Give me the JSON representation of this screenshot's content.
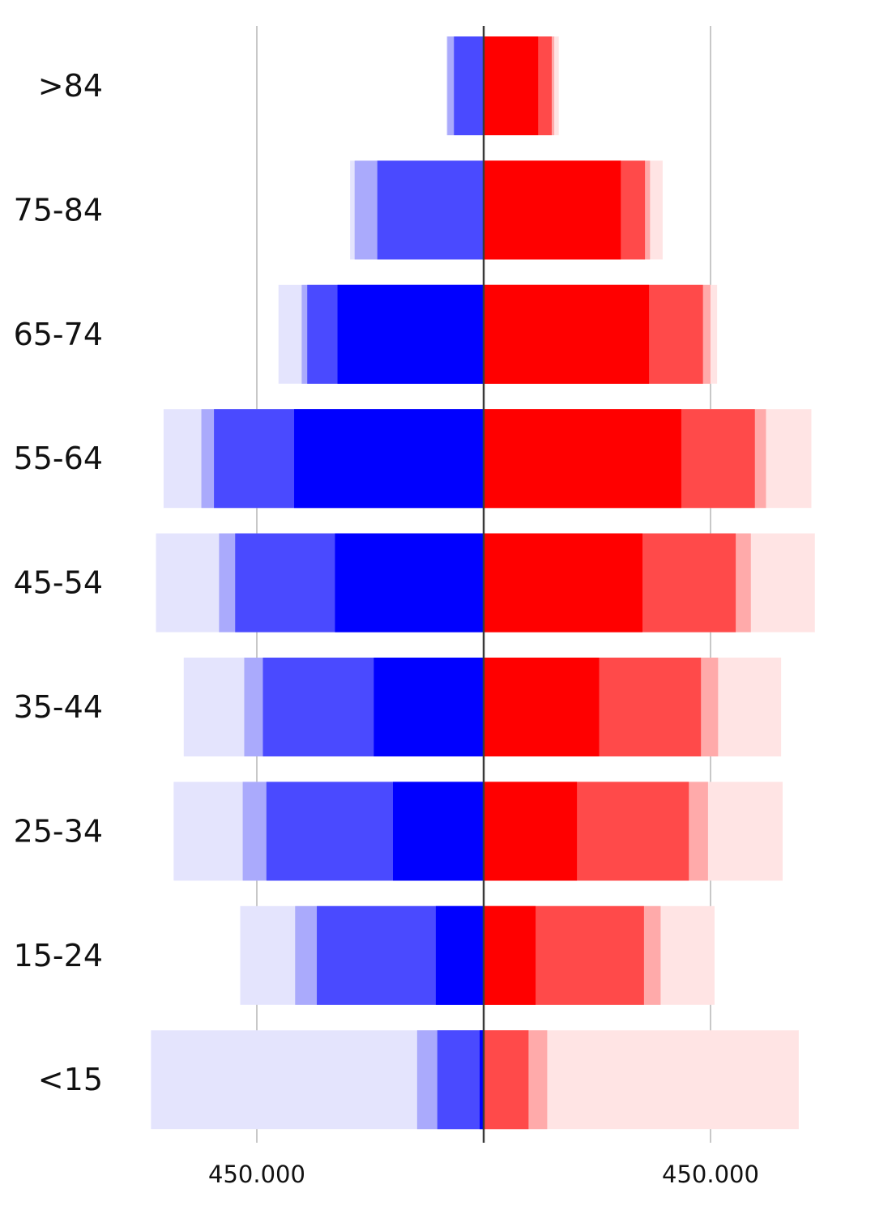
{
  "chart_data": {
    "type": "bar",
    "orientation": "horizontal-diverging",
    "title": "",
    "xlabel": "",
    "ylabel": "",
    "categories": [
      ">84",
      "75-84",
      "65-74",
      "55-64",
      "45-54",
      "35-44",
      "25-34",
      "15-24",
      "<15"
    ],
    "xlim": [
      -660000,
      660000
    ],
    "grid": "vertical-lines-at-ticks",
    "legend": "none",
    "ticks": [
      {
        "value": -450000,
        "label": "450.000"
      },
      {
        "value": 450000,
        "label": "450.000"
      }
    ],
    "left_side": {
      "layer_colors": [
        "#e4e4fd",
        "#aaaafc",
        "#4a4aff",
        "#0000ff"
      ],
      "layers_cumulative": [
        [
          74000,
          72000,
          59000,
          0
        ],
        [
          265000,
          256000,
          211000,
          0
        ],
        [
          407000,
          361000,
          350000,
          290000
        ],
        [
          635000,
          560000,
          535000,
          376000
        ],
        [
          650000,
          525000,
          493000,
          295000
        ],
        [
          595000,
          475000,
          438000,
          218000
        ],
        [
          615000,
          478000,
          431000,
          180000
        ],
        [
          483000,
          374000,
          331000,
          95000
        ],
        [
          660000,
          132000,
          92000,
          8000
        ]
      ]
    },
    "right_side": {
      "layer_colors": [
        "#ffe4e4",
        "#ffaaaa",
        "#ff4a4a",
        "#ff0000"
      ],
      "layers_cumulative": [
        [
          149000,
          140000,
          135000,
          108000
        ],
        [
          355000,
          330000,
          320000,
          272000
        ],
        [
          463000,
          450000,
          435000,
          328000
        ],
        [
          650000,
          560000,
          538000,
          392000
        ],
        [
          657000,
          530000,
          500000,
          315000
        ],
        [
          590000,
          465000,
          431000,
          229000
        ],
        [
          593000,
          445000,
          407000,
          185000
        ],
        [
          458000,
          351000,
          318000,
          103000
        ],
        [
          625000,
          126000,
          89000,
          0
        ]
      ]
    }
  }
}
